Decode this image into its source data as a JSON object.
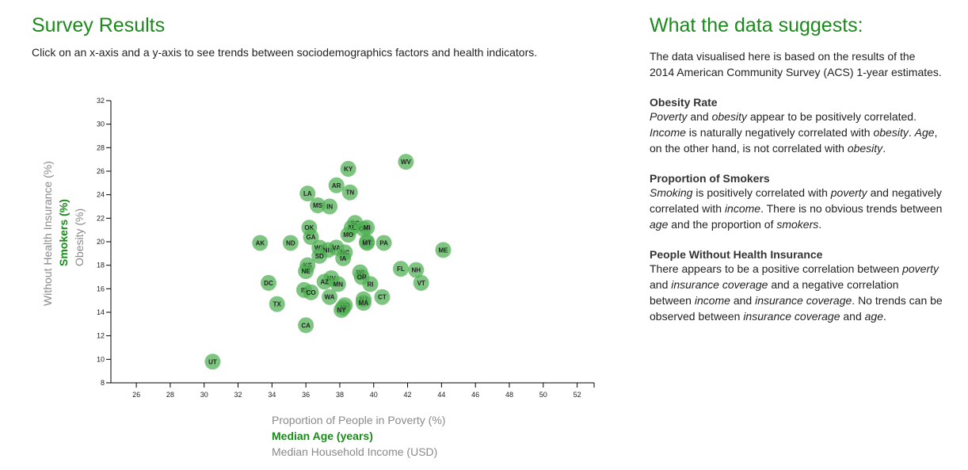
{
  "page": {
    "title": "Survey Results",
    "intro": "Click on an x-axis and a y-axis to see trends between sociodemographics factors and health indicators."
  },
  "axes": {
    "x": [
      {
        "label": "Proportion of People in Poverty (%)",
        "active": false
      },
      {
        "label": "Median Age (years)",
        "active": true
      },
      {
        "label": "Median Household Income (USD)",
        "active": false
      }
    ],
    "y": [
      {
        "label": "Obesity (%)",
        "active": false
      },
      {
        "label": "Smokers (%)",
        "active": true
      },
      {
        "label": "Without Health Insurance (%)",
        "active": false
      }
    ]
  },
  "sidebar": {
    "title": "What the data suggests:",
    "intro": "The data visualised here is based on the results of the 2014 American Community Survey (ACS) 1-year estimates.",
    "sections": [
      {
        "heading": "Obesity Rate",
        "segments": [
          {
            "t": "Poverty",
            "i": true
          },
          {
            "t": " and ",
            "i": false
          },
          {
            "t": "obesity",
            "i": true
          },
          {
            "t": " appear to be positively correlated. ",
            "i": false
          },
          {
            "t": "Income",
            "i": true
          },
          {
            "t": " is naturally negatively correlated with ",
            "i": false
          },
          {
            "t": "obesity",
            "i": true
          },
          {
            "t": ". ",
            "i": false
          },
          {
            "t": "Age",
            "i": true
          },
          {
            "t": ", on the other hand, is not correlated with ",
            "i": false
          },
          {
            "t": "obesity",
            "i": true
          },
          {
            "t": ".",
            "i": false
          }
        ]
      },
      {
        "heading": "Proportion of Smokers",
        "segments": [
          {
            "t": "Smoking",
            "i": true
          },
          {
            "t": " is positively correlated with ",
            "i": false
          },
          {
            "t": "poverty",
            "i": true
          },
          {
            "t": " and negatively correlated with ",
            "i": false
          },
          {
            "t": "income",
            "i": true
          },
          {
            "t": ". There is no obvious trends between ",
            "i": false
          },
          {
            "t": "age",
            "i": true
          },
          {
            "t": " and the proportion of ",
            "i": false
          },
          {
            "t": "smokers",
            "i": true
          },
          {
            "t": ".",
            "i": false
          }
        ]
      },
      {
        "heading": "People Without Health Insurance",
        "segments": [
          {
            "t": "There appears to be a positive correlation between ",
            "i": false
          },
          {
            "t": "poverty",
            "i": true
          },
          {
            "t": " and ",
            "i": false
          },
          {
            "t": "insurance coverage",
            "i": true
          },
          {
            "t": " and a negative correlation between ",
            "i": false
          },
          {
            "t": "income",
            "i": true
          },
          {
            "t": " and ",
            "i": false
          },
          {
            "t": "insurance coverage",
            "i": true
          },
          {
            "t": ". No trends can be observed between ",
            "i": false
          },
          {
            "t": "insurance coverage",
            "i": true
          },
          {
            "t": " and ",
            "i": false
          },
          {
            "t": "age",
            "i": true
          },
          {
            "t": ".",
            "i": false
          }
        ]
      }
    ]
  },
  "chart_data": {
    "type": "scatter",
    "xlim": [
      24.5,
      53
    ],
    "ylim": [
      8,
      32
    ],
    "xticks": [
      26,
      28,
      30,
      32,
      34,
      36,
      38,
      40,
      42,
      44,
      46,
      48,
      50,
      52
    ],
    "yticks": [
      8,
      10,
      12,
      14,
      16,
      18,
      20,
      22,
      24,
      26,
      28,
      30,
      32
    ],
    "marker_color": "#4caf50",
    "points": [
      {
        "label": "WV",
        "x": 41.9,
        "y": 26.8
      },
      {
        "label": "KY",
        "x": 38.5,
        "y": 26.2
      },
      {
        "label": "AR",
        "x": 37.8,
        "y": 24.8
      },
      {
        "label": "TN",
        "x": 38.6,
        "y": 24.2
      },
      {
        "label": "LA",
        "x": 36.1,
        "y": 24.1
      },
      {
        "label": "MS",
        "x": 36.7,
        "y": 23.1
      },
      {
        "label": "IN",
        "x": 37.4,
        "y": 23.0
      },
      {
        "label": "SC",
        "x": 38.9,
        "y": 21.6
      },
      {
        "label": "AL",
        "x": 38.7,
        "y": 21.2
      },
      {
        "label": "OH",
        "x": 39.4,
        "y": 21.1
      },
      {
        "label": "MI",
        "x": 39.6,
        "y": 21.2
      },
      {
        "label": "OK",
        "x": 36.2,
        "y": 21.2
      },
      {
        "label": "MO",
        "x": 38.5,
        "y": 20.6
      },
      {
        "label": "GA",
        "x": 36.3,
        "y": 20.4
      },
      {
        "label": "DE",
        "x": 39.6,
        "y": 20.0
      },
      {
        "label": "MT",
        "x": 39.6,
        "y": 19.9
      },
      {
        "label": "PA",
        "x": 40.6,
        "y": 19.9
      },
      {
        "label": "AK",
        "x": 33.3,
        "y": 19.9
      },
      {
        "label": "ND",
        "x": 35.1,
        "y": 19.9
      },
      {
        "label": "ME",
        "x": 44.1,
        "y": 19.3
      },
      {
        "label": "WY",
        "x": 36.8,
        "y": 19.5
      },
      {
        "label": "NM",
        "x": 37.3,
        "y": 19.3
      },
      {
        "label": "VA",
        "x": 37.8,
        "y": 19.5
      },
      {
        "label": "NC",
        "x": 38.3,
        "y": 19.1
      },
      {
        "label": "SD",
        "x": 36.8,
        "y": 18.8
      },
      {
        "label": "IA",
        "x": 38.2,
        "y": 18.6
      },
      {
        "label": "KS",
        "x": 36.1,
        "y": 18.0
      },
      {
        "label": "FL",
        "x": 41.6,
        "y": 17.7
      },
      {
        "label": "NH",
        "x": 42.5,
        "y": 17.6
      },
      {
        "label": "NE",
        "x": 36.0,
        "y": 17.5
      },
      {
        "label": "WI",
        "x": 39.2,
        "y": 17.4
      },
      {
        "label": "OR",
        "x": 39.3,
        "y": 17.0
      },
      {
        "label": "NV",
        "x": 37.5,
        "y": 16.9
      },
      {
        "label": "VT",
        "x": 42.8,
        "y": 16.5
      },
      {
        "label": "DC",
        "x": 33.8,
        "y": 16.5
      },
      {
        "label": "AZ",
        "x": 37.1,
        "y": 16.6
      },
      {
        "label": "MN",
        "x": 37.9,
        "y": 16.4
      },
      {
        "label": "RI",
        "x": 39.8,
        "y": 16.4
      },
      {
        "label": "ID",
        "x": 35.9,
        "y": 15.9
      },
      {
        "label": "CO",
        "x": 36.3,
        "y": 15.7
      },
      {
        "label": "WA",
        "x": 37.4,
        "y": 15.3
      },
      {
        "label": "CT",
        "x": 40.5,
        "y": 15.3
      },
      {
        "label": "NJ",
        "x": 39.4,
        "y": 15.1
      },
      {
        "label": "MA",
        "x": 39.4,
        "y": 14.8
      },
      {
        "label": "TX",
        "x": 34.3,
        "y": 14.7
      },
      {
        "label": "MD",
        "x": 38.3,
        "y": 14.6
      },
      {
        "label": "HI",
        "x": 38.2,
        "y": 14.4
      },
      {
        "label": "NY",
        "x": 38.1,
        "y": 14.2
      },
      {
        "label": "CA",
        "x": 36.0,
        "y": 12.9
      },
      {
        "label": "UT",
        "x": 30.5,
        "y": 9.8
      }
    ]
  }
}
